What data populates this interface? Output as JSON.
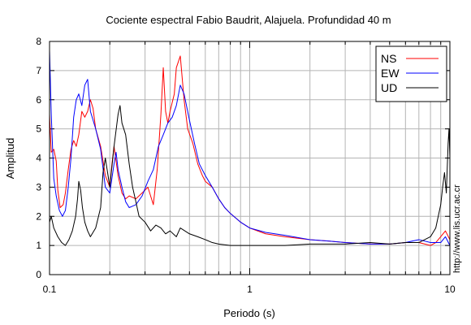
{
  "chart_data": {
    "type": "line",
    "title": "Cociente espectral Fabio Baudrit, Alajuela. Profundidad 40 m",
    "xlabel": "Periodo (s)",
    "ylabel": "Amplitud",
    "x_scale": "log",
    "xlim": [
      0.1,
      10
    ],
    "ylim": [
      0,
      8
    ],
    "x_ticks": [
      0.1,
      1,
      10
    ],
    "x_tick_labels": [
      "0.1",
      "1",
      "10"
    ],
    "y_ticks": [
      0,
      1,
      2,
      3,
      4,
      5,
      6,
      7,
      8
    ],
    "y_tick_labels": [
      "0",
      "1",
      "2",
      "3",
      "4",
      "5",
      "6",
      "7",
      "8"
    ],
    "grid": true,
    "legend_position": "top-right",
    "watermark": "http://www.lis.ucr.ac.cr",
    "series": [
      {
        "name": "NS",
        "color": "#ff0000",
        "points": [
          [
            0.1,
            5.5
          ],
          [
            0.102,
            4.2
          ],
          [
            0.105,
            4.3
          ],
          [
            0.108,
            3.9
          ],
          [
            0.11,
            2.9
          ],
          [
            0.113,
            2.3
          ],
          [
            0.117,
            2.4
          ],
          [
            0.12,
            2.8
          ],
          [
            0.124,
            3.6
          ],
          [
            0.128,
            4.3
          ],
          [
            0.132,
            4.6
          ],
          [
            0.136,
            4.4
          ],
          [
            0.14,
            4.8
          ],
          [
            0.145,
            5.6
          ],
          [
            0.15,
            5.4
          ],
          [
            0.155,
            5.6
          ],
          [
            0.16,
            6.0
          ],
          [
            0.165,
            5.7
          ],
          [
            0.17,
            5.0
          ],
          [
            0.18,
            4.4
          ],
          [
            0.19,
            3.4
          ],
          [
            0.2,
            3.0
          ],
          [
            0.205,
            3.8
          ],
          [
            0.21,
            4.4
          ],
          [
            0.22,
            3.4
          ],
          [
            0.23,
            2.8
          ],
          [
            0.24,
            2.6
          ],
          [
            0.25,
            2.7
          ],
          [
            0.27,
            2.6
          ],
          [
            0.29,
            2.8
          ],
          [
            0.31,
            3.0
          ],
          [
            0.33,
            2.4
          ],
          [
            0.345,
            3.6
          ],
          [
            0.36,
            5.5
          ],
          [
            0.37,
            7.1
          ],
          [
            0.38,
            5.6
          ],
          [
            0.39,
            5.2
          ],
          [
            0.4,
            5.6
          ],
          [
            0.42,
            6.2
          ],
          [
            0.43,
            7.1
          ],
          [
            0.45,
            7.5
          ],
          [
            0.47,
            6.0
          ],
          [
            0.49,
            5.0
          ],
          [
            0.52,
            4.5
          ],
          [
            0.55,
            3.8
          ],
          [
            0.58,
            3.4
          ],
          [
            0.6,
            3.2
          ],
          [
            0.65,
            3.0
          ],
          [
            0.7,
            2.6
          ],
          [
            0.75,
            2.3
          ],
          [
            0.8,
            2.1
          ],
          [
            0.9,
            1.8
          ],
          [
            1.0,
            1.6
          ],
          [
            1.2,
            1.4
          ],
          [
            1.5,
            1.3
          ],
          [
            2.0,
            1.2
          ],
          [
            2.5,
            1.15
          ],
          [
            3.0,
            1.1
          ],
          [
            4.0,
            1.05
          ],
          [
            5.0,
            1.05
          ],
          [
            6.0,
            1.1
          ],
          [
            7.0,
            1.1
          ],
          [
            8.0,
            1.0
          ],
          [
            8.5,
            1.1
          ],
          [
            9.0,
            1.3
          ],
          [
            9.5,
            1.5
          ],
          [
            10.0,
            1.2
          ]
        ]
      },
      {
        "name": "EW",
        "color": "#0000ff",
        "points": [
          [
            0.1,
            7.7
          ],
          [
            0.102,
            5.5
          ],
          [
            0.105,
            3.3
          ],
          [
            0.108,
            2.7
          ],
          [
            0.112,
            2.2
          ],
          [
            0.116,
            2.0
          ],
          [
            0.12,
            2.2
          ],
          [
            0.124,
            3.0
          ],
          [
            0.128,
            4.0
          ],
          [
            0.132,
            5.4
          ],
          [
            0.136,
            6.0
          ],
          [
            0.14,
            6.2
          ],
          [
            0.145,
            5.8
          ],
          [
            0.15,
            6.5
          ],
          [
            0.155,
            6.7
          ],
          [
            0.16,
            5.6
          ],
          [
            0.165,
            5.3
          ],
          [
            0.17,
            5.0
          ],
          [
            0.18,
            4.3
          ],
          [
            0.19,
            3.0
          ],
          [
            0.2,
            2.8
          ],
          [
            0.21,
            3.8
          ],
          [
            0.215,
            4.2
          ],
          [
            0.22,
            3.6
          ],
          [
            0.23,
            3.0
          ],
          [
            0.24,
            2.5
          ],
          [
            0.25,
            2.3
          ],
          [
            0.27,
            2.4
          ],
          [
            0.29,
            2.7
          ],
          [
            0.31,
            3.2
          ],
          [
            0.33,
            3.6
          ],
          [
            0.35,
            4.4
          ],
          [
            0.37,
            4.8
          ],
          [
            0.39,
            5.2
          ],
          [
            0.41,
            5.4
          ],
          [
            0.43,
            5.8
          ],
          [
            0.45,
            6.5
          ],
          [
            0.47,
            6.2
          ],
          [
            0.5,
            5.3
          ],
          [
            0.53,
            4.5
          ],
          [
            0.56,
            3.8
          ],
          [
            0.6,
            3.4
          ],
          [
            0.65,
            3.0
          ],
          [
            0.7,
            2.6
          ],
          [
            0.75,
            2.3
          ],
          [
            0.8,
            2.1
          ],
          [
            0.9,
            1.8
          ],
          [
            1.0,
            1.6
          ],
          [
            1.2,
            1.45
          ],
          [
            1.5,
            1.35
          ],
          [
            2.0,
            1.2
          ],
          [
            2.5,
            1.15
          ],
          [
            3.0,
            1.1
          ],
          [
            4.0,
            1.05
          ],
          [
            5.0,
            1.05
          ],
          [
            6.0,
            1.1
          ],
          [
            7.0,
            1.2
          ],
          [
            8.0,
            1.1
          ],
          [
            9.0,
            1.1
          ],
          [
            9.5,
            1.3
          ],
          [
            10.0,
            1.0
          ]
        ]
      },
      {
        "name": "UD",
        "color": "#000000",
        "points": [
          [
            0.1,
            1.8
          ],
          [
            0.102,
            2.0
          ],
          [
            0.105,
            1.6
          ],
          [
            0.11,
            1.3
          ],
          [
            0.115,
            1.1
          ],
          [
            0.12,
            1.0
          ],
          [
            0.125,
            1.2
          ],
          [
            0.13,
            1.5
          ],
          [
            0.135,
            2.0
          ],
          [
            0.138,
            2.6
          ],
          [
            0.14,
            3.2
          ],
          [
            0.143,
            2.9
          ],
          [
            0.146,
            2.3
          ],
          [
            0.15,
            1.8
          ],
          [
            0.155,
            1.5
          ],
          [
            0.16,
            1.3
          ],
          [
            0.17,
            1.6
          ],
          [
            0.18,
            2.3
          ],
          [
            0.185,
            3.5
          ],
          [
            0.19,
            4.0
          ],
          [
            0.195,
            3.5
          ],
          [
            0.2,
            3.0
          ],
          [
            0.21,
            4.4
          ],
          [
            0.22,
            5.5
          ],
          [
            0.225,
            5.8
          ],
          [
            0.23,
            5.2
          ],
          [
            0.24,
            4.8
          ],
          [
            0.25,
            3.8
          ],
          [
            0.26,
            3.0
          ],
          [
            0.27,
            2.5
          ],
          [
            0.28,
            2.0
          ],
          [
            0.3,
            1.8
          ],
          [
            0.32,
            1.5
          ],
          [
            0.34,
            1.7
          ],
          [
            0.36,
            1.6
          ],
          [
            0.38,
            1.4
          ],
          [
            0.4,
            1.5
          ],
          [
            0.43,
            1.3
          ],
          [
            0.45,
            1.6
          ],
          [
            0.5,
            1.4
          ],
          [
            0.55,
            1.3
          ],
          [
            0.6,
            1.2
          ],
          [
            0.65,
            1.1
          ],
          [
            0.7,
            1.05
          ],
          [
            0.8,
            1.0
          ],
          [
            1.0,
            1.0
          ],
          [
            1.5,
            1.0
          ],
          [
            2.0,
            1.05
          ],
          [
            3.0,
            1.05
          ],
          [
            4.0,
            1.1
          ],
          [
            5.0,
            1.05
          ],
          [
            6.0,
            1.1
          ],
          [
            7.0,
            1.1
          ],
          [
            8.0,
            1.3
          ],
          [
            8.5,
            1.6
          ],
          [
            9.0,
            2.4
          ],
          [
            9.2,
            3.0
          ],
          [
            9.4,
            3.5
          ],
          [
            9.6,
            2.8
          ],
          [
            9.8,
            4.5
          ],
          [
            9.9,
            5.0
          ],
          [
            10.0,
            4.0
          ]
        ]
      }
    ]
  }
}
